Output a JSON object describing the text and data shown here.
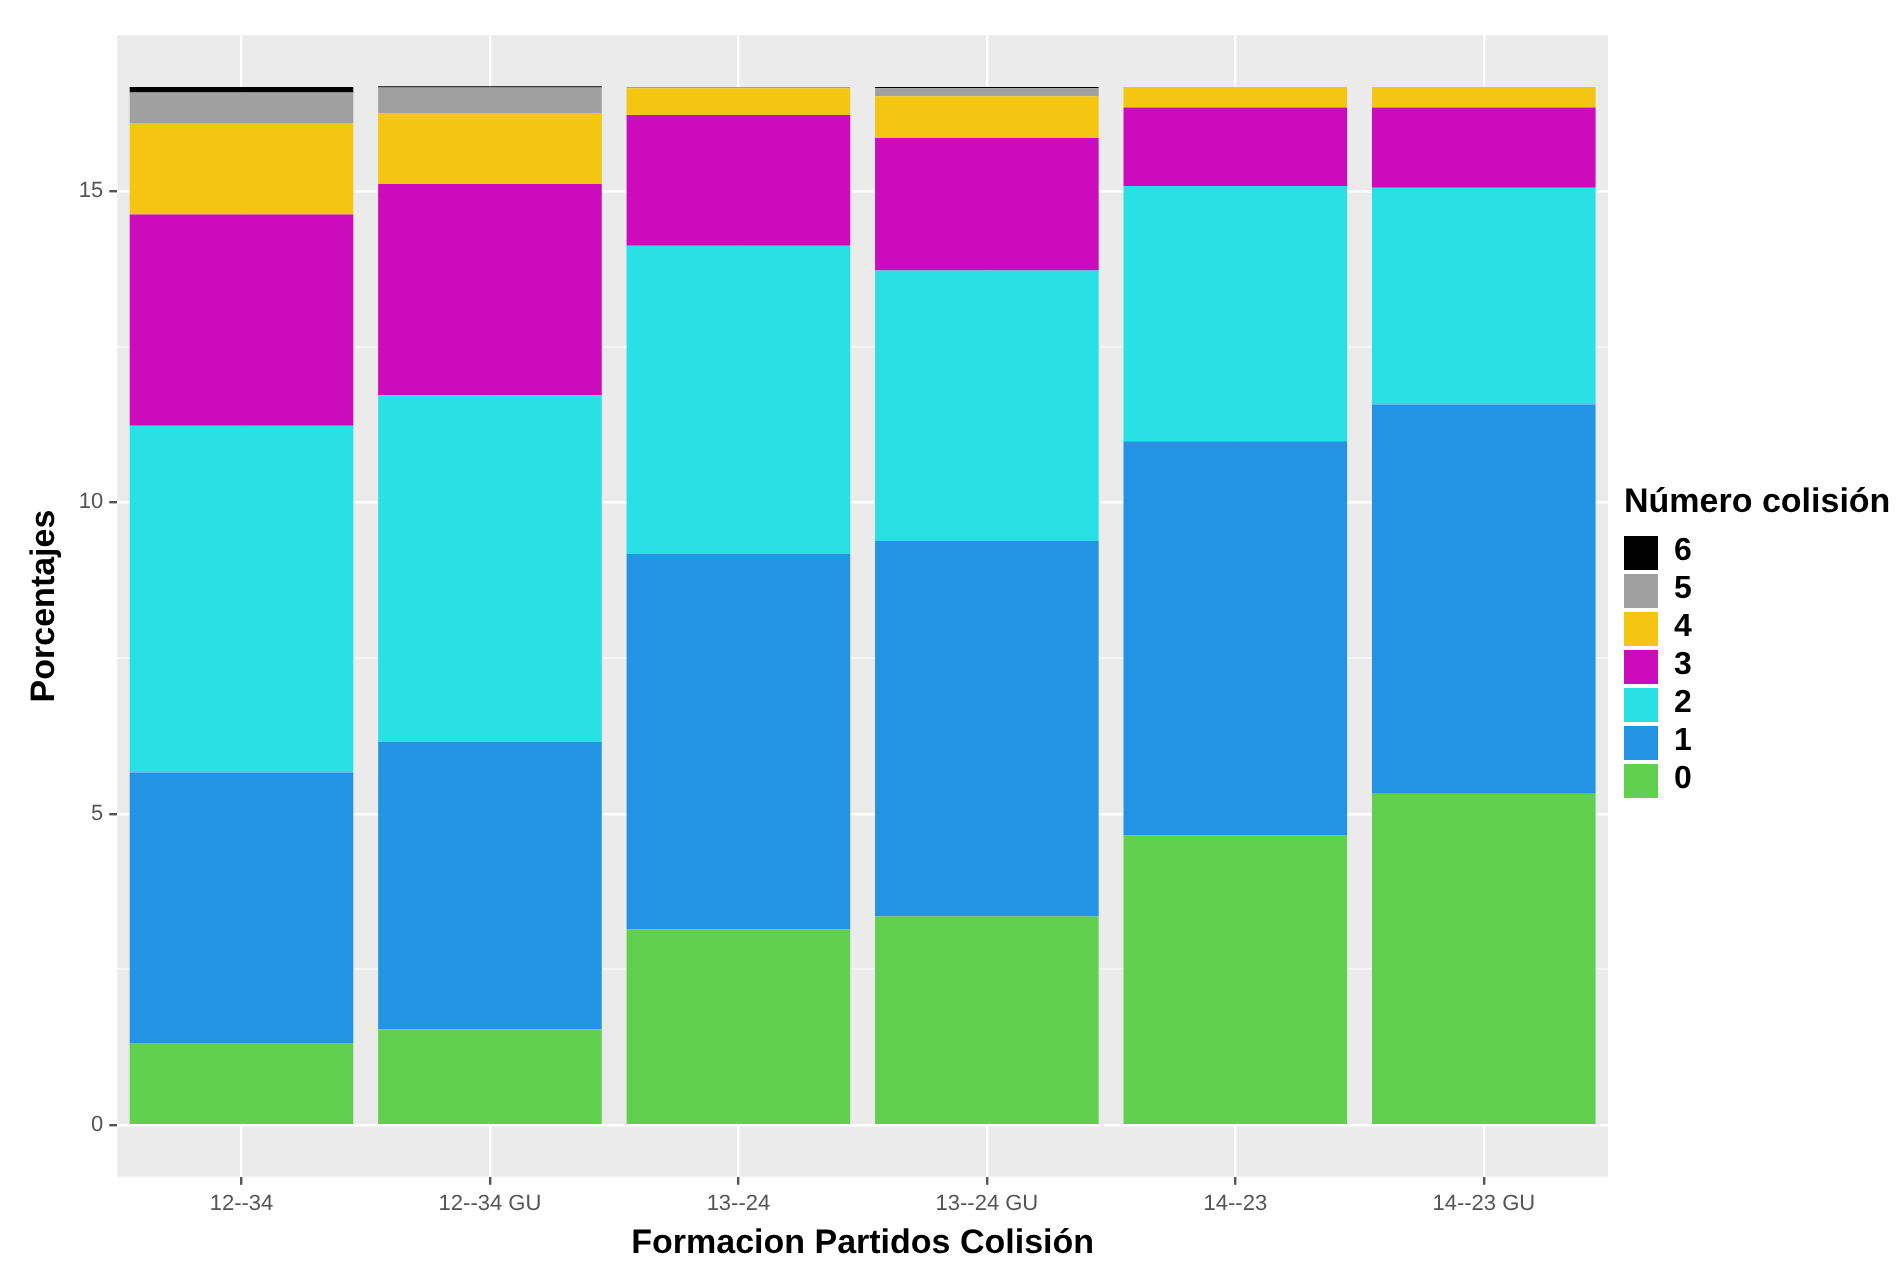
{
  "chart_data": {
    "type": "bar",
    "stacked": true,
    "xlabel": "Formacion Partidos Colisión",
    "ylabel": "Porcentajes",
    "legend_title": "Número colisión",
    "legend": "right",
    "grid": true,
    "categories": [
      "12--34",
      "12--34 GU",
      "13--24",
      "13--24 GU",
      "14--23",
      "14--23 GU"
    ],
    "series": [
      {
        "name": "0",
        "color": "#62d04f",
        "values": [
          1.32,
          1.54,
          3.14,
          3.35,
          4.65,
          5.32
        ]
      },
      {
        "name": "1",
        "color": "#2394e3",
        "values": [
          4.34,
          4.61,
          6.03,
          6.03,
          6.33,
          6.25
        ]
      },
      {
        "name": "2",
        "color": "#29e1e4",
        "values": [
          5.57,
          5.57,
          4.95,
          4.34,
          4.1,
          3.48
        ]
      },
      {
        "name": "3",
        "color": "#cc0cbc",
        "values": [
          3.39,
          3.39,
          2.1,
          2.13,
          1.26,
          1.29
        ]
      },
      {
        "name": "4",
        "color": "#f4c511",
        "values": [
          1.47,
          1.14,
          0.43,
          0.67,
          0.33,
          0.33
        ]
      },
      {
        "name": "5",
        "color": "#a0a0a0",
        "values": [
          0.49,
          0.41,
          0.02,
          0.13,
          0,
          0
        ]
      },
      {
        "name": "6",
        "color": "#000000",
        "values": [
          0.09,
          0.02,
          0,
          0.02,
          0,
          0
        ]
      }
    ],
    "ylim": [
      -0.83,
      17.5
    ],
    "yticks": [
      0,
      {
        "value": 2.5,
        "label": null
      },
      5,
      {
        "value": 7.5,
        "label": null
      },
      10,
      {
        "value": 12.5,
        "label": null
      },
      15
    ]
  }
}
